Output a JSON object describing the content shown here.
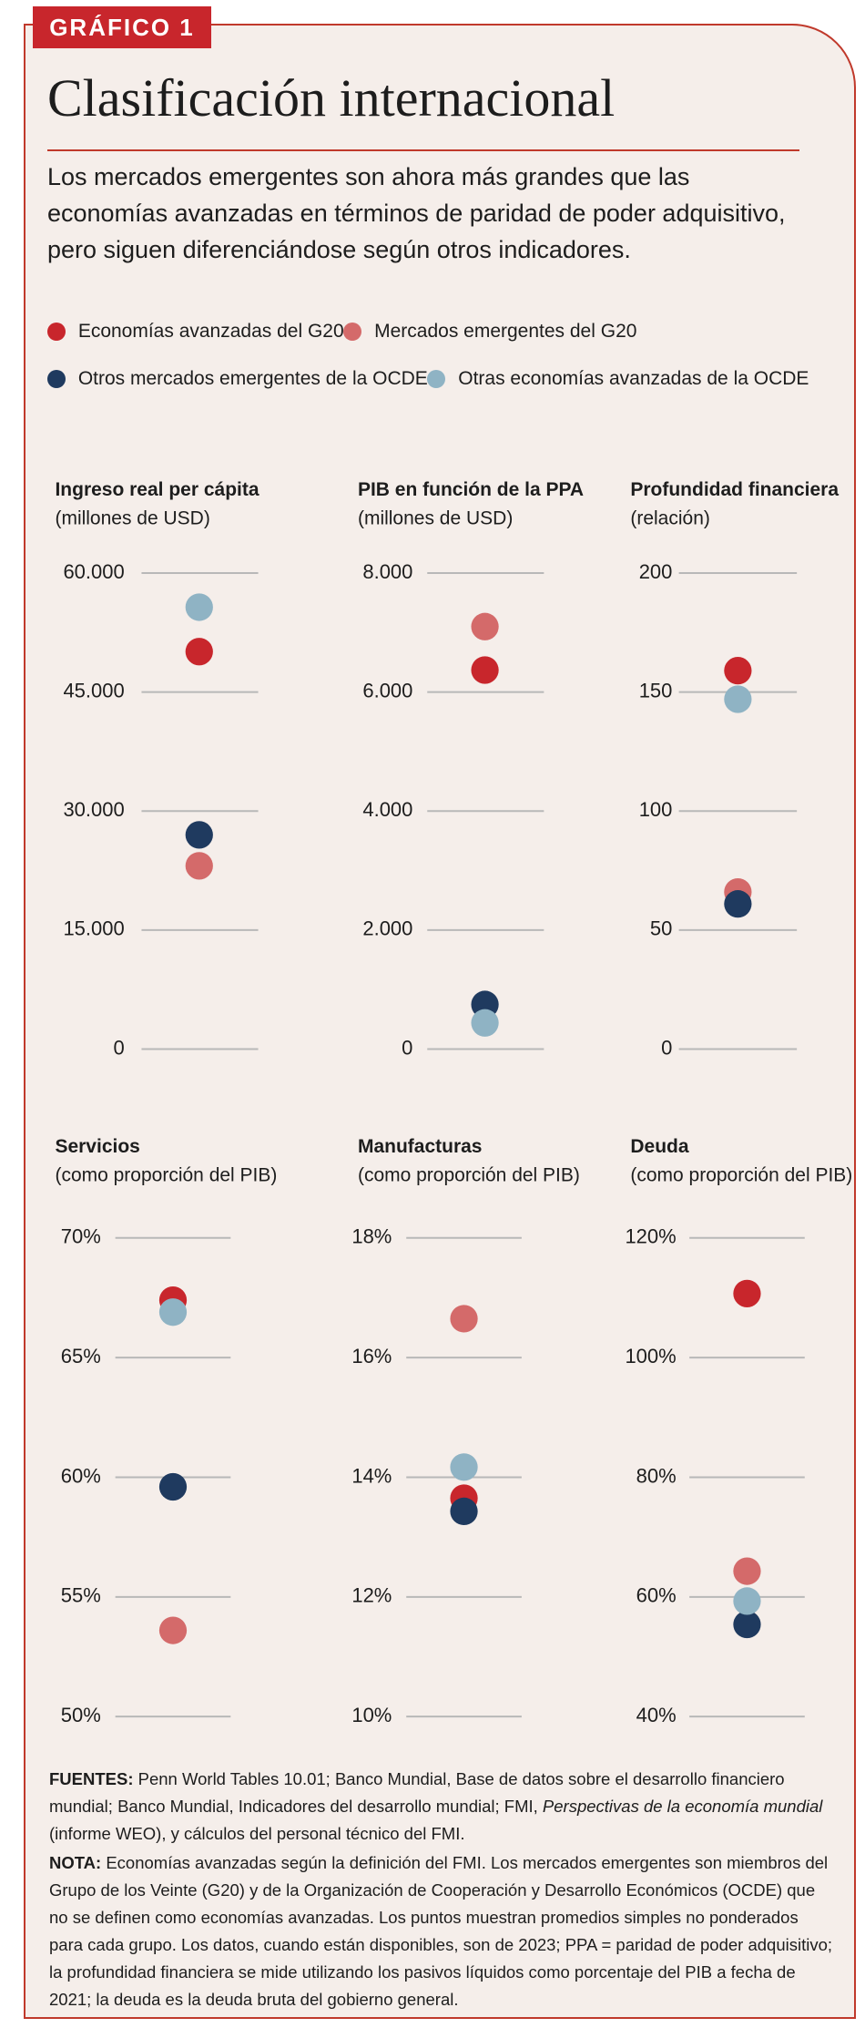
{
  "badge": "GRÁFICO 1",
  "title": "Clasificación internacional",
  "description": "Los mercados emergentes son ahora más grandes que las economías avanzadas en términos de paridad de poder adquisitivo, pero siguen diferenciándose según otros indicadores.",
  "legend": [
    {
      "name": "Economías avanzadas del G20",
      "color": "#c8262c"
    },
    {
      "name": "Mercados emergentes del G20",
      "color": "#d46a6a"
    },
    {
      "name": "Otros mercados emergentes de la OCDE",
      "color": "#1f3a5f"
    },
    {
      "name": "Otras economías avanzadas de la OCDE",
      "color": "#8fb3c4"
    }
  ],
  "chart_data": [
    {
      "type": "dot",
      "title": "Ingreso real per cápita",
      "subtitle": "(millones de USD)",
      "grid": true,
      "ylim": [
        0,
        60000
      ],
      "yticks": [
        0,
        {
          "value": 15000,
          "label": "15.000"
        },
        {
          "value": 30000,
          "label": "30.000"
        },
        {
          "value": 45000,
          "label": "45.000"
        },
        {
          "value": 60000,
          "label": "60.000"
        }
      ],
      "series": [
        {
          "color": "#c8262c",
          "values": [
            50100
          ]
        },
        {
          "color": "#d46a6a",
          "values": [
            23100
          ]
        },
        {
          "color": "#1f3a5f",
          "values": [
            27000
          ]
        },
        {
          "color": "#8fb3c4",
          "values": [
            55700
          ]
        }
      ]
    },
    {
      "type": "dot",
      "title": "PIB en función de la PPA",
      "subtitle": "(millones de USD)",
      "grid": true,
      "ylim": [
        0,
        8000
      ],
      "yticks": [
        0,
        {
          "value": 2000,
          "label": "2.000"
        },
        {
          "value": 4000,
          "label": "4.000"
        },
        {
          "value": 6000,
          "label": "6.000"
        },
        {
          "value": 8000,
          "label": "8.000"
        }
      ],
      "series": [
        {
          "color": "#c8262c",
          "values": [
            6370
          ]
        },
        {
          "color": "#d46a6a",
          "values": [
            7100
          ]
        },
        {
          "color": "#1f3a5f",
          "values": [
            750
          ]
        },
        {
          "color": "#8fb3c4",
          "values": [
            440
          ]
        }
      ]
    },
    {
      "type": "dot",
      "title": "Profundidad financiera",
      "subtitle": "(relación)",
      "grid": true,
      "ylim": [
        0,
        200
      ],
      "yticks": [
        0,
        50,
        100,
        150,
        200
      ],
      "series": [
        {
          "color": "#c8262c",
          "values": [
            159
          ]
        },
        {
          "color": "#d46a6a",
          "values": [
            66
          ]
        },
        {
          "color": "#1f3a5f",
          "values": [
            61
          ]
        },
        {
          "color": "#8fb3c4",
          "values": [
            147
          ]
        }
      ]
    },
    {
      "type": "dot",
      "title": "Servicios",
      "subtitle": "(como proporción del PIB)",
      "grid": true,
      "ylim": [
        50,
        70
      ],
      "yticks": [
        {
          "value": 50,
          "label": "50%"
        },
        {
          "value": 55,
          "label": "55%"
        },
        {
          "value": 60,
          "label": "60%"
        },
        {
          "value": 65,
          "label": "65%"
        },
        {
          "value": 70,
          "label": "70%"
        }
      ],
      "series": [
        {
          "color": "#c8262c",
          "values": [
            67.4
          ]
        },
        {
          "color": "#d46a6a",
          "values": [
            53.6
          ]
        },
        {
          "color": "#1f3a5f",
          "values": [
            59.6
          ]
        },
        {
          "color": "#8fb3c4",
          "values": [
            66.9
          ]
        }
      ]
    },
    {
      "type": "dot",
      "title": "Manufacturas",
      "subtitle": "(como proporción del PIB)",
      "grid": true,
      "ylim": [
        10,
        18
      ],
      "yticks": [
        {
          "value": 10,
          "label": "10%"
        },
        {
          "value": 12,
          "label": "12%"
        },
        {
          "value": 14,
          "label": "14%"
        },
        {
          "value": 16,
          "label": "16%"
        },
        {
          "value": 18,
          "label": "18%"
        }
      ],
      "series": [
        {
          "color": "#c8262c",
          "values": [
            13.65
          ]
        },
        {
          "color": "#d46a6a",
          "values": [
            16.65
          ]
        },
        {
          "color": "#1f3a5f",
          "values": [
            13.43
          ]
        },
        {
          "color": "#8fb3c4",
          "values": [
            14.17
          ]
        }
      ]
    },
    {
      "type": "dot",
      "title": "Deuda",
      "subtitle": "(como proporción del PIB)",
      "grid": true,
      "ylim": [
        40,
        120
      ],
      "yticks": [
        {
          "value": 40,
          "label": "40%"
        },
        {
          "value": 60,
          "label": "60%"
        },
        {
          "value": 80,
          "label": "80%"
        },
        {
          "value": 100,
          "label": "100%"
        },
        {
          "value": 120,
          "label": "120%"
        }
      ],
      "series": [
        {
          "color": "#c8262c",
          "values": [
            110.7
          ]
        },
        {
          "color": "#d46a6a",
          "values": [
            64.3
          ]
        },
        {
          "color": "#1f3a5f",
          "values": [
            55.4
          ]
        },
        {
          "color": "#8fb3c4",
          "values": [
            59.3
          ]
        }
      ]
    }
  ],
  "sources": {
    "label": "FUENTES:",
    "text": "Penn World Tables 10.01; Banco Mundial, Base de datos sobre el desarrollo financiero mundial; Banco Mundial, Indicadores del desarrollo mundial; FMI, ",
    "italic": "Perspectivas de la economía mundial",
    "text_end": " (informe WEO), y cálculos del personal técnico del FMI."
  },
  "note": {
    "label": "NOTA:",
    "text": "Economías avanzadas según la definición del FMI. Los mercados emergentes son miembros del Grupo de los Veinte (G20) y de la Organización de Cooperación y Desarrollo Económicos (OCDE) que no se definen como economías avanzadas. Los puntos muestran promedios simples no ponderados para cada grupo. Los datos, cuando están disponibles, son de 2023; PPA = paridad de poder adquisitivo; la profundidad financiera se mide utilizando los pasivos líquidos como porcentaje del PIB a fecha de 2021; la deuda es la deuda bruta del gobierno general."
  }
}
